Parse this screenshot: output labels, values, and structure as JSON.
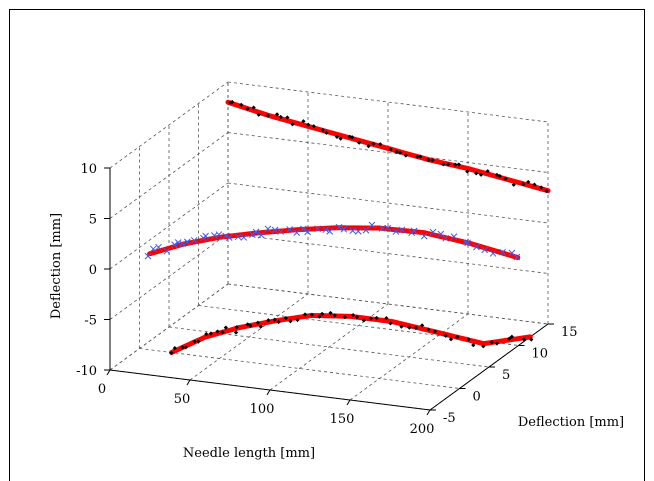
{
  "chart_data": {
    "type": "scatter",
    "projection": "3d",
    "title": "",
    "xlabel": "Needle length [mm]",
    "ylabel": "Deflection [mm]",
    "zlabel": "Deflection [mm]",
    "xlim": [
      0,
      200
    ],
    "ylim": [
      -5,
      15
    ],
    "zlim": [
      -10,
      10
    ],
    "xticks": [
      "0",
      "50",
      "100",
      "150",
      "200"
    ],
    "yticks": [
      "-5",
      "0",
      "5",
      "10",
      "15"
    ],
    "zticks": [
      "-10",
      "-5",
      "0",
      "5",
      "10"
    ],
    "grid": true,
    "colors": {
      "measured": "#000000",
      "measured_top_view": "#3a5cf0",
      "fit": "#ff0000",
      "grid": "#555555"
    },
    "series": [
      {
        "marker": "dot",
        "color": "#000000",
        "curve": "side_view_floor",
        "points": [
          [
            20,
            0,
            -10
          ],
          [
            40,
            0.3,
            -8.2
          ],
          [
            60,
            0.6,
            -7.0
          ],
          [
            80,
            1.2,
            -6.2
          ],
          [
            100,
            2.0,
            -5.6
          ],
          [
            120,
            3.2,
            -5.8
          ],
          [
            140,
            4.8,
            -6.6
          ],
          [
            160,
            7.0,
            -8.2
          ],
          [
            180,
            9.5,
            -10
          ],
          [
            200,
            12.0,
            -10
          ]
        ]
      },
      {
        "marker": "x",
        "color": "#3a5cf0",
        "curve": "mid_plane",
        "points": [
          [
            10,
            -1.0,
            0
          ],
          [
            30,
            -0.6,
            1.2
          ],
          [
            50,
            0,
            2.0
          ],
          [
            70,
            1.0,
            2.4
          ],
          [
            90,
            2.2,
            2.6
          ],
          [
            110,
            3.6,
            2.6
          ],
          [
            130,
            5.4,
            2.2
          ],
          [
            150,
            7.6,
            1.2
          ],
          [
            170,
            10.0,
            -0.5
          ],
          [
            190,
            12.6,
            -2.6
          ]
        ]
      },
      {
        "marker": "dot",
        "color": "#000000",
        "curve": "back_wall",
        "points": [
          [
            0,
            15,
            8.0
          ],
          [
            25,
            15,
            7.2
          ],
          [
            50,
            15,
            6.6
          ],
          [
            75,
            15,
            6.0
          ],
          [
            100,
            15,
            5.4
          ],
          [
            125,
            15,
            4.8
          ],
          [
            150,
            15,
            4.4
          ],
          [
            175,
            15,
            3.8
          ],
          [
            200,
            15,
            3.2
          ]
        ]
      },
      {
        "marker": "line",
        "color": "#ff0000",
        "curve": "fitted_models",
        "points": []
      }
    ]
  }
}
